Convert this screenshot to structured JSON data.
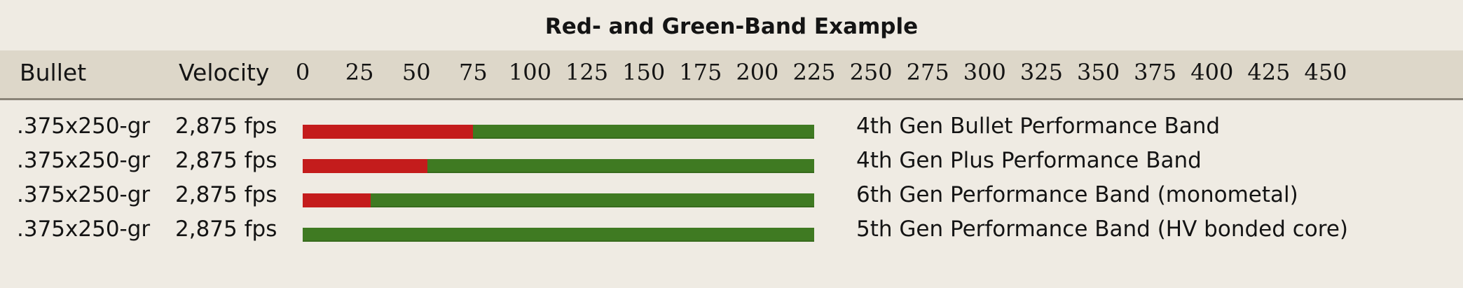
{
  "chart_data": {
    "type": "bar",
    "title": "Red- and Green-Band Example",
    "columns": {
      "bullet": "Bullet",
      "velocity": "Velocity"
    },
    "x_ticks": [
      "0",
      "25",
      "50",
      "75",
      "100",
      "125",
      "150",
      "175",
      "200",
      "225",
      "250",
      "275",
      "300",
      "325",
      "350",
      "375",
      "400",
      "425",
      "450"
    ],
    "x_range": [
      0,
      450
    ],
    "series": [
      {
        "name": "red",
        "color": "#c41c1c"
      },
      {
        "name": "green",
        "color": "#3f7a22"
      }
    ],
    "rows": [
      {
        "bullet": ".375x250-gr",
        "velocity": "2,875 fps",
        "label": "4th Gen Bullet Performance Band",
        "red_end": 75,
        "green_end": 225
      },
      {
        "bullet": ".375x250-gr",
        "velocity": "2,875 fps",
        "label": "4th Gen Plus Performance Band",
        "red_end": 55,
        "green_end": 225
      },
      {
        "bullet": ".375x250-gr",
        "velocity": "2,875 fps",
        "label": "6th Gen Performance Band (monometal)",
        "red_end": 30,
        "green_end": 225
      },
      {
        "bullet": ".375x250-gr",
        "velocity": "2,875 fps",
        "label": "5th Gen Performance Band (HV bonded core)",
        "red_end": 0,
        "green_end": 225
      }
    ]
  }
}
